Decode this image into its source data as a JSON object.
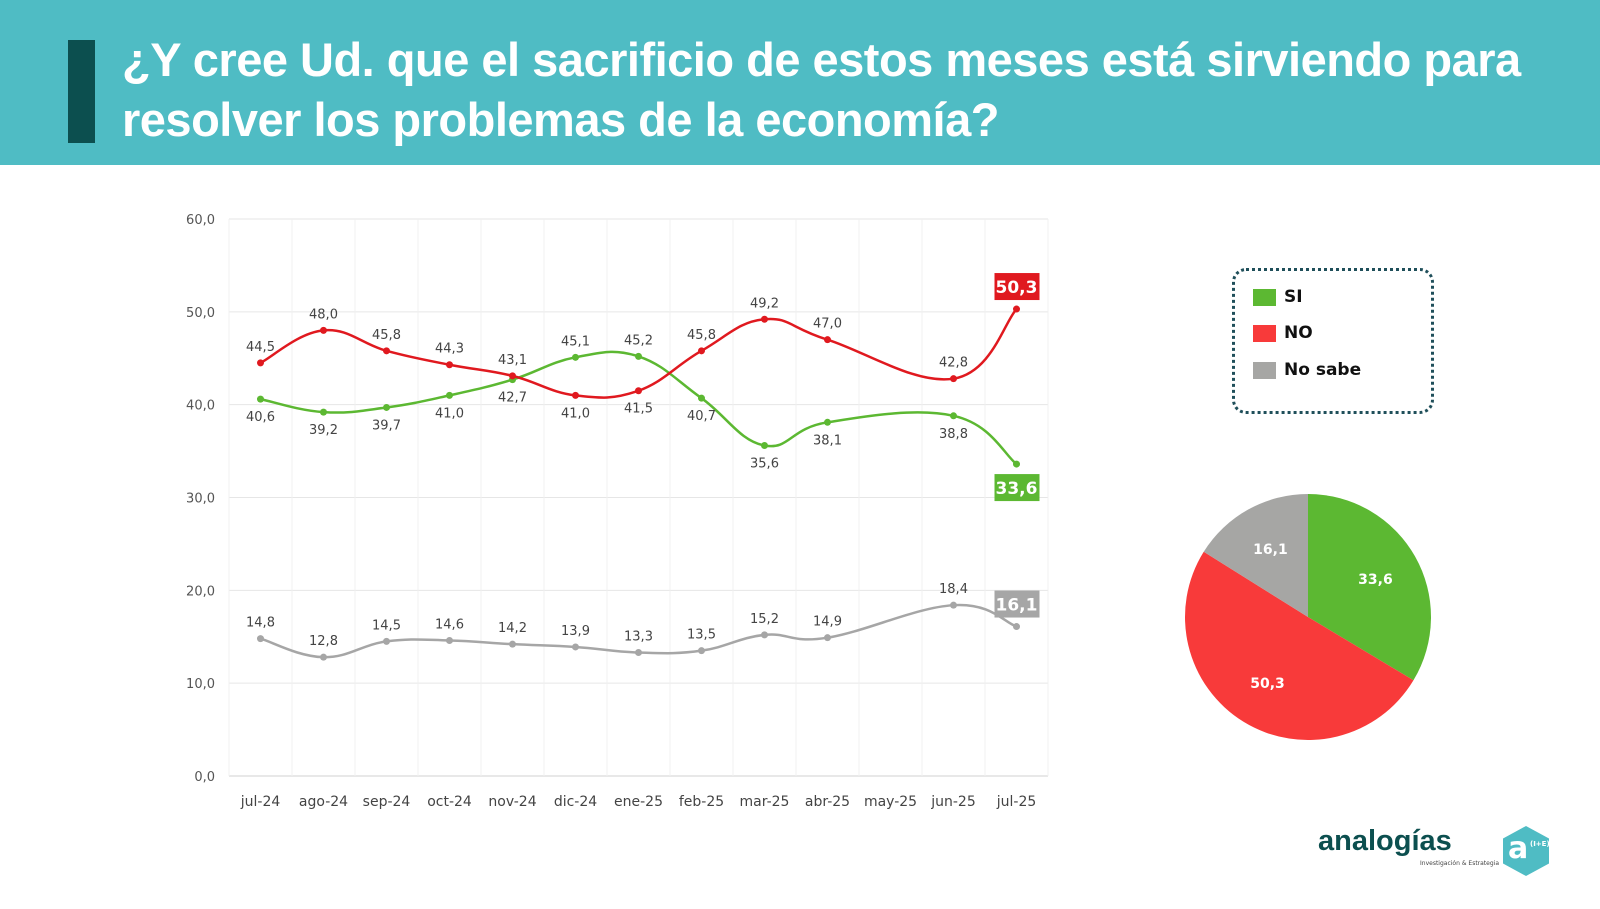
{
  "header": {
    "title": "¿Y cree Ud. que el sacrificio de estos meses está sirviendo para resolver los problemas de la economía?"
  },
  "chart_data": [
    {
      "type": "line",
      "categories": [
        "jul-24",
        "ago-24",
        "sep-24",
        "oct-24",
        "nov-24",
        "dic-24",
        "ene-25",
        "feb-25",
        "mar-25",
        "abr-25",
        "may-25",
        "jun-25",
        "jul-25"
      ],
      "ylim": [
        0,
        60
      ],
      "yticks": [
        "0,0",
        "10,0",
        "20,0",
        "30,0",
        "40,0",
        "50,0",
        "60,0"
      ],
      "grid": true,
      "series": [
        {
          "name": "SI",
          "color": "#5cb832",
          "values": [
            40.6,
            39.2,
            39.7,
            41.0,
            42.7,
            45.1,
            45.2,
            40.7,
            35.6,
            38.1,
            null,
            38.8,
            33.6
          ],
          "labels": [
            "40,6",
            "39,2",
            "39,7",
            "41,0",
            "42,7",
            "45,1",
            "45,2",
            "40,7",
            "35,6",
            "38,1",
            "",
            "38,8",
            "33,6"
          ]
        },
        {
          "name": "NO",
          "color": "#e0191f",
          "values": [
            44.5,
            48.0,
            45.8,
            44.3,
            43.1,
            41.0,
            41.5,
            45.8,
            49.2,
            47.0,
            null,
            42.8,
            50.3
          ],
          "labels": [
            "44,5",
            "48,0",
            "45,8",
            "44,3",
            "43,1",
            "41,0",
            "41,5",
            "45,8",
            "49,2",
            "47,0",
            "",
            "42,8",
            "50,3"
          ]
        },
        {
          "name": "No sabe",
          "color": "#a6a6a6",
          "values": [
            14.8,
            12.8,
            14.5,
            14.6,
            14.2,
            13.9,
            13.3,
            13.5,
            15.2,
            14.9,
            null,
            18.4,
            16.1
          ],
          "labels": [
            "14,8",
            "12,8",
            "14,5",
            "14,6",
            "14,2",
            "13,9",
            "13,3",
            "13,5",
            "15,2",
            "14,9",
            "",
            "18,4",
            "16,1"
          ]
        }
      ]
    },
    {
      "type": "pie",
      "slices": [
        {
          "name": "SI",
          "value": 33.6,
          "label": "33,6",
          "color": "#5cb832"
        },
        {
          "name": "NO",
          "value": 50.3,
          "label": "50,3",
          "color": "#f83a3a"
        },
        {
          "name": "No sabe",
          "value": 16.1,
          "label": "16,1",
          "color": "#a6a6a4"
        }
      ],
      "legend": {
        "position": "top-right",
        "items": [
          "SI",
          "NO",
          "No sabe"
        ]
      }
    }
  ],
  "logo": {
    "name": "analogías",
    "sub1": "Investigación",
    "sub2": "& Estrategia",
    "mark": "a",
    "mark_sup": "(I+E)"
  }
}
